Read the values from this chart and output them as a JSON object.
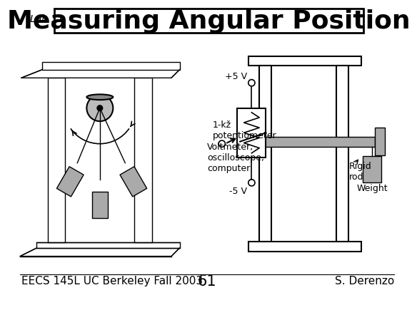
{
  "title": "Measuring Angular Position",
  "lab_label": "Lab 11",
  "footer_left": "EECS 145L UC Berkeley Fall 2003",
  "footer_center": "61",
  "footer_right": "S. Derenzo",
  "bg_color": "#ffffff",
  "title_fontsize": 26,
  "lab_fontsize": 10,
  "footer_fontsize": 11,
  "gray_color": "#aaaaaa",
  "gray_mid": "#bbbbbb"
}
